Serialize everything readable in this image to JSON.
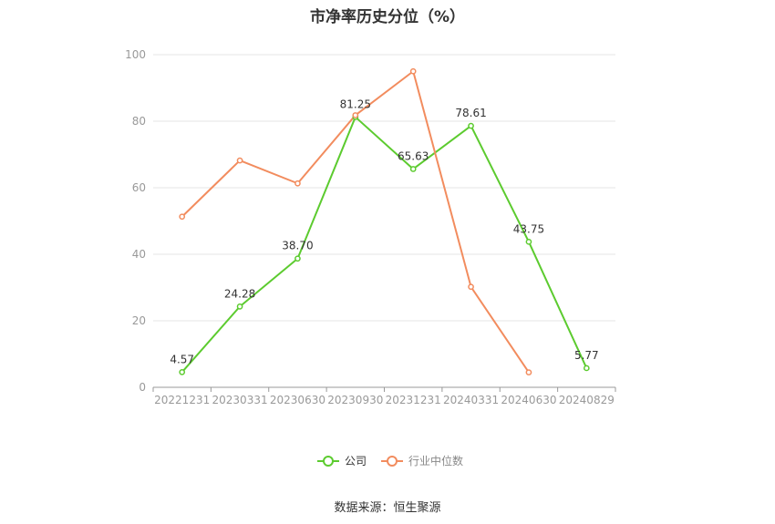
{
  "chart_data": {
    "type": "line",
    "title": "市净率历史分位（%）",
    "x": [
      "20221231",
      "20230331",
      "20230630",
      "20230930",
      "20231231",
      "20240331",
      "20240630",
      "20240829"
    ],
    "ylim": [
      0,
      100
    ],
    "yticks": [
      0,
      20,
      40,
      60,
      80,
      100
    ],
    "grid": true,
    "legend_position": "bottom",
    "series": [
      {
        "name": "公司",
        "color": "#5ccb2f",
        "values": [
          4.57,
          24.28,
          38.7,
          81.25,
          65.63,
          78.61,
          43.75,
          5.77
        ],
        "labels": [
          "4.57",
          "24.28",
          "38.70",
          "81.25",
          "65.63",
          "78.61",
          "43.75",
          "5.77"
        ]
      },
      {
        "name": "行业中位数",
        "color": "#f28c5e",
        "values": [
          51.3,
          68.2,
          61.3,
          81.8,
          95.0,
          30.2,
          4.5,
          null
        ]
      }
    ]
  },
  "source": "数据来源：恒生聚源"
}
